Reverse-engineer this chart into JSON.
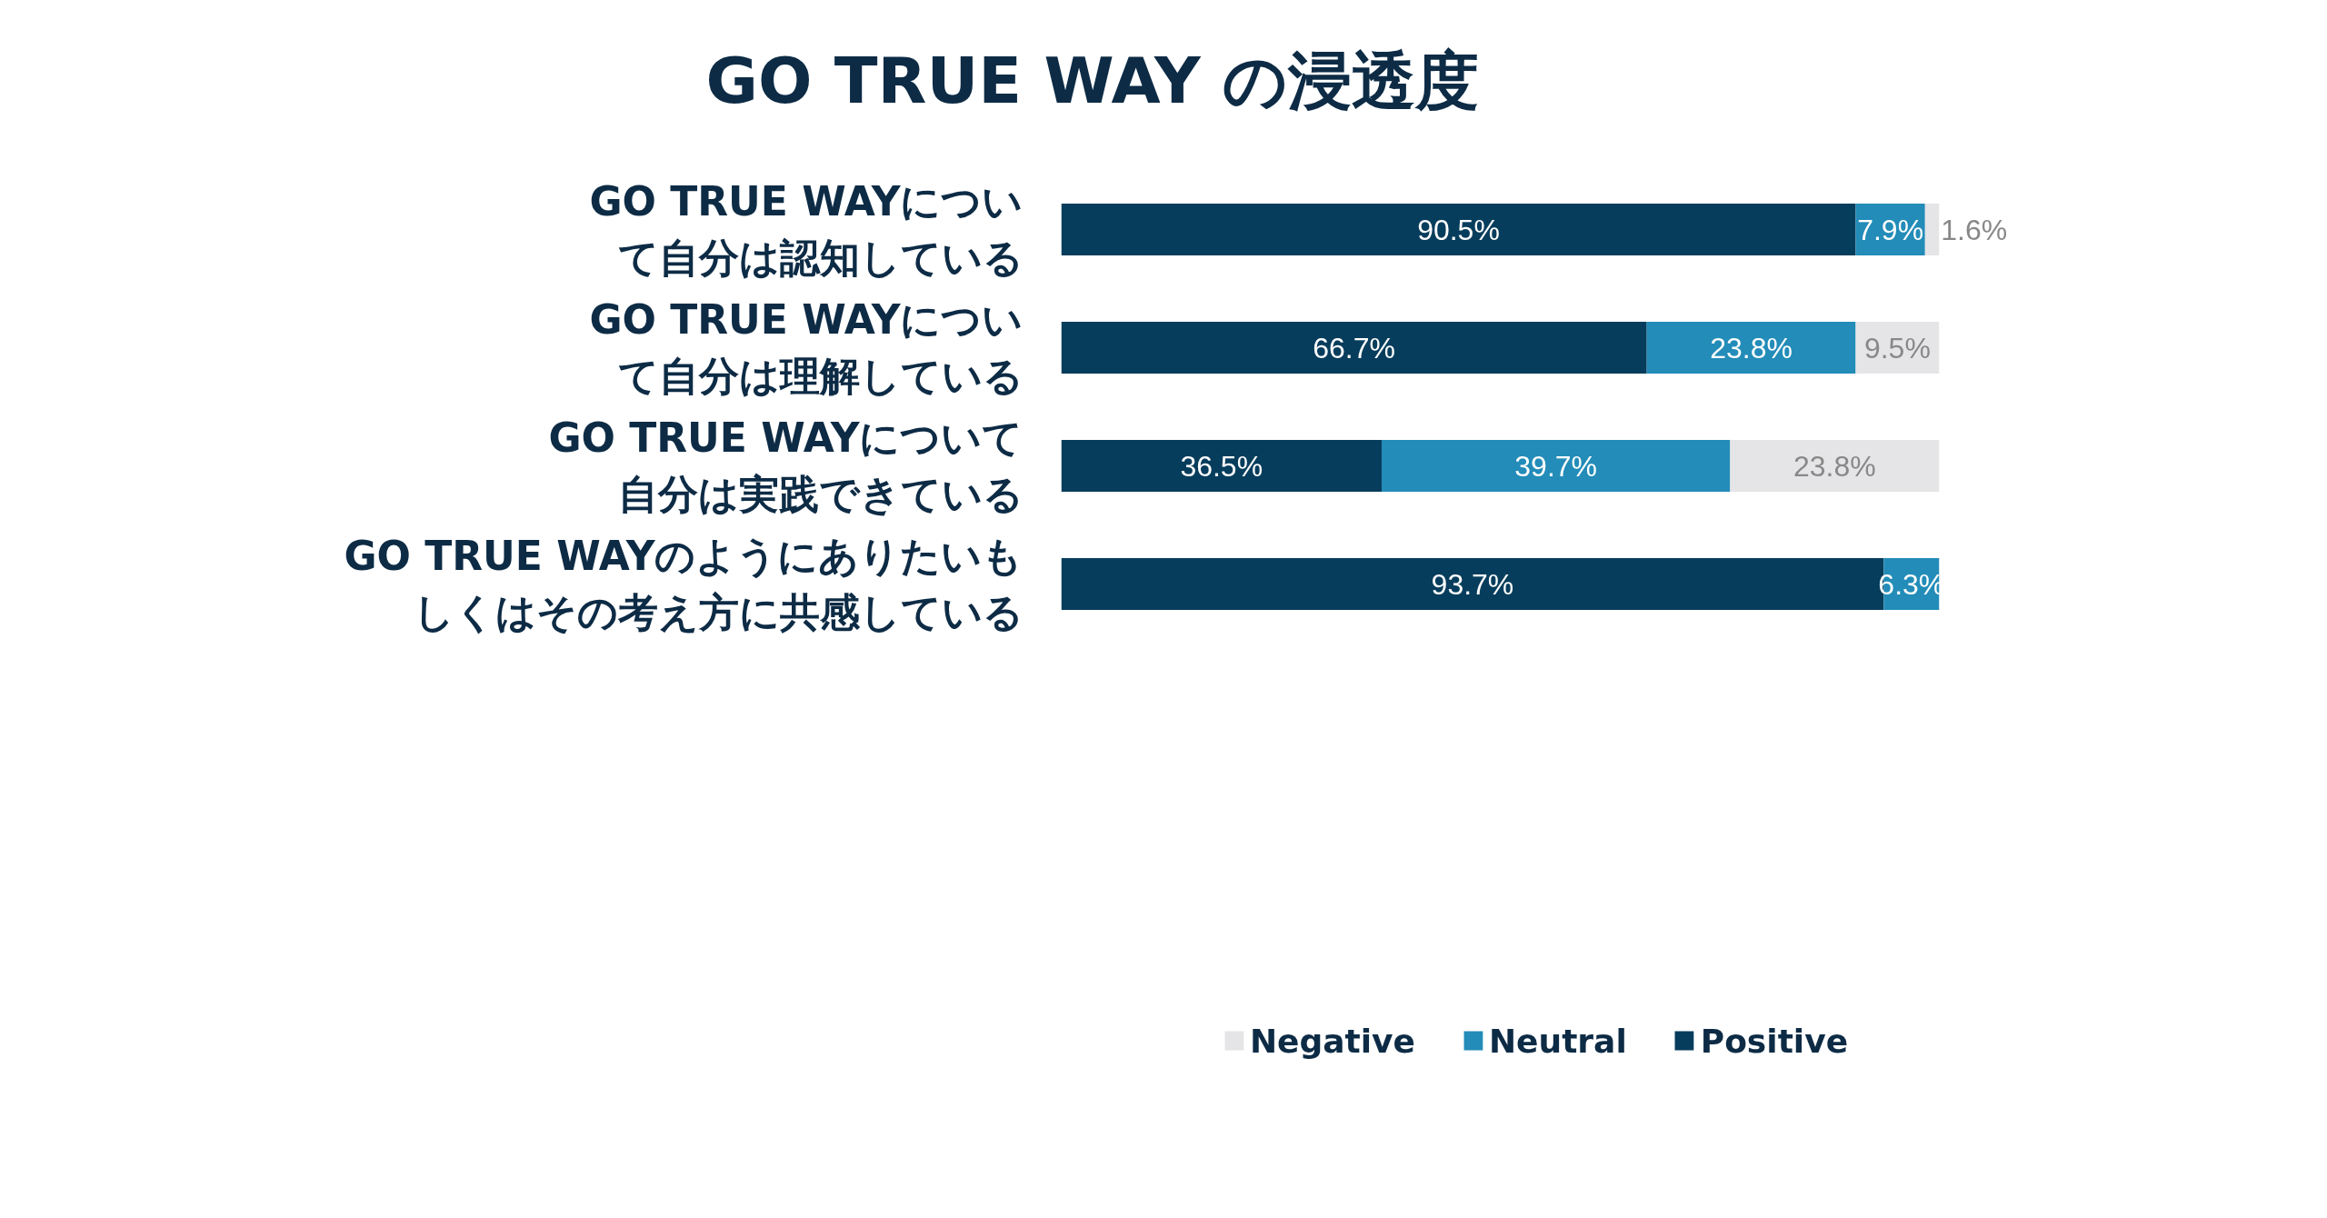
{
  "chart_data": {
    "type": "bar",
    "orientation": "horizontal",
    "stacked": true,
    "title": "GO TRUE WAY の浸透度",
    "categories": [
      "GO TRUE WAYについて自分は認知している",
      "GO TRUE WAYについて自分は理解している",
      "GO TRUE WAYについて自分は実践できている",
      "GO TRUE WAYのようにありたいもしくはその考え方に共感している"
    ],
    "series": [
      {
        "name": "Positive",
        "color": "#073d5c",
        "values": [
          90.5,
          66.7,
          36.5,
          93.7
        ],
        "value_labels": [
          "90.5%",
          "66.7%",
          "36.5%",
          "93.7%"
        ]
      },
      {
        "name": "Neutral",
        "color": "#238cb8",
        "values": [
          7.9,
          23.8,
          39.7,
          6.3
        ],
        "value_labels": [
          "7.9%",
          "23.8%",
          "39.7%",
          "6.3%"
        ]
      },
      {
        "name": "Negative",
        "color": "#e5e5e7",
        "values": [
          1.6,
          9.5,
          23.8,
          null
        ],
        "value_labels": [
          "1.6%",
          "9.5%",
          "23.8%",
          null
        ]
      }
    ],
    "legend": "bottom",
    "grid": false
  }
}
